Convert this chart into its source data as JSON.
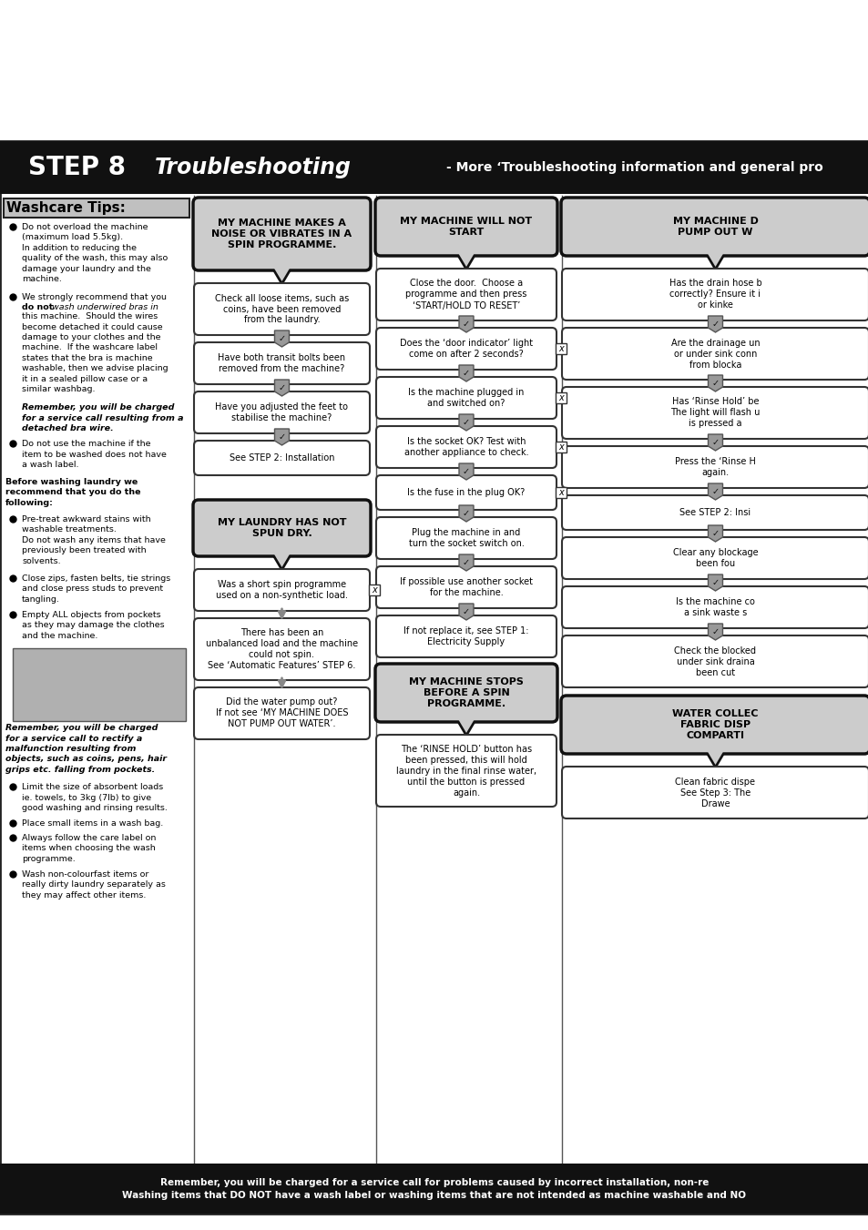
{
  "bg_color": "#ffffff",
  "header_bg": "#111111",
  "header_step8": "STEP 8",
  "header_trouble": "Troubleshooting",
  "header_more": "- More ‘Troubleshooting information and general pro",
  "washcare_title": "Washcare Tips:",
  "col2_title": "MY MACHINE MAKES A\nNOISE OR VIBRATES IN A\nSPIN PROGRAMME.",
  "col2_items": [
    "Check all loose items, such as\ncoins, have been removed\nfrom the laundry.",
    "Have both transit bolts been\nremoved from the machine?",
    "Have you adjusted the feet to\nstabilise the machine?",
    "See STEP 2: Installation"
  ],
  "col2b_title": "MY LAUNDRY HAS NOT\nSPUN DRY.",
  "col2b_items": [
    "Was a short spin programme\nused on a non-synthetic load.",
    "There has been an\nunbalanced load and the machine\ncould not spin.\nSee ‘Automatic Features’ STEP 6.",
    "Did the water pump out?\nIf not see ‘MY MACHINE DOES\nNOT PUMP OUT WATER’."
  ],
  "col3_title": "MY MACHINE WILL NOT\nSTART",
  "col3_items": [
    "Close the door.  Choose a\nprogramme and then press\n‘START/HOLD TO RESET’",
    "Does the ‘door indicator’ light\ncome on after 2 seconds?",
    "Is the machine plugged in\nand switched on?",
    "Is the socket OK? Test with\nanother appliance to check.",
    "Is the fuse in the plug OK?",
    "Plug the machine in and\nturn the socket switch on.",
    "If possible use another socket\nfor the machine.",
    "If not replace it, see STEP 1:\nElectricity Supply"
  ],
  "col3b_title": "MY MACHINE STOPS\nBEFORE A SPIN\nPROGRAMME.",
  "col3b_items": [
    "The ‘RINSE HOLD’ button has\nbeen pressed, this will hold\nlaundry in the final rinse water,\nuntil the button is pressed\nagain."
  ],
  "col4_title": "MY MACHINE D\nPUMP OUT W",
  "col4_items": [
    "Has the drain hose b\ncorrectly? Ensure it i\nor kinke",
    "Are the drainage un\nor under sink conn\nfrom blocka",
    "Has ‘Rinse Hold’ be\nThe light will flash u\nis pressed a",
    "Press the ‘Rinse H\nagain.",
    "See STEP 2: Insi",
    "Clear any blockage\nbeen fou",
    "Is the machine co\na sink waste s",
    "Check the blocked\nunder sink draina\nbeen cut"
  ],
  "col4b_title": "WATER COLLEC\nFABRIC DISP\nCOMPARTI",
  "col4b_items": [
    "Clean fabric dispe\nSee Step 3: The\nDrawe"
  ],
  "footer": "Remember, you will be charged for a service call for problems caused by incorrect installation, non-re\nWashing items that DO NOT have a wash label or washing items that are not intended as machine washable and NO"
}
